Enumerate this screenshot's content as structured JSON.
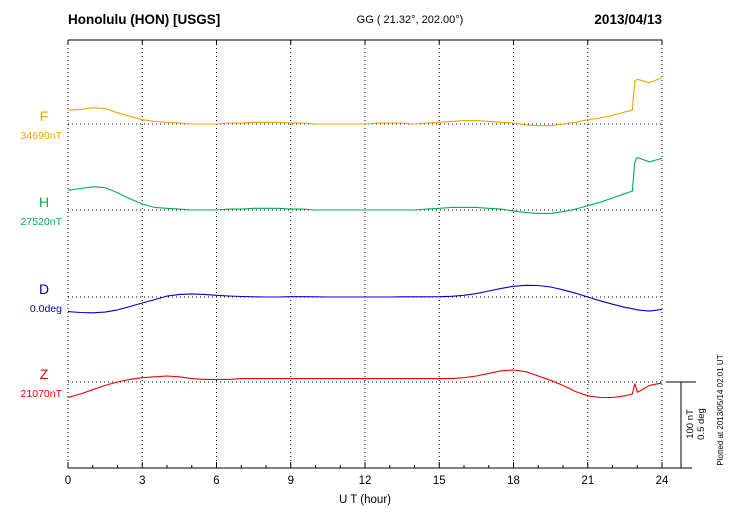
{
  "header": {
    "station_title": "Honolulu (HON)  [USGS]",
    "coordinates": "GG ( 21.32°, 202.00°)",
    "date": "2013/04/13"
  },
  "footer": {
    "plotted_note": "Plotted at 2013/05/14 02:01 UT"
  },
  "chart_data": {
    "type": "line",
    "title": "Honolulu (HON) [USGS] magnetogram 2013/04/13",
    "xlabel": "U T (hour)",
    "x_range": [
      0,
      24
    ],
    "x_ticks": [
      0,
      3,
      6,
      9,
      12,
      15,
      18,
      21,
      24
    ],
    "grid": "dotted vertical lines every 3 hours; dotted horizontal baseline per trace",
    "legend_position": "left baseline labels per trace",
    "scale_bar": {
      "nt": "100 nT",
      "deg": "0.5 deg"
    },
    "x": [
      0,
      0.5,
      1,
      1.5,
      2,
      2.5,
      3,
      3.5,
      4,
      4.5,
      5,
      5.5,
      6,
      6.5,
      7,
      7.5,
      8,
      8.5,
      9,
      9.5,
      10,
      10.5,
      11,
      11.5,
      12,
      12.5,
      13,
      13.5,
      14,
      14.5,
      15,
      15.5,
      16,
      16.5,
      17,
      17.5,
      18,
      18.5,
      19,
      19.5,
      20,
      20.5,
      21,
      21.5,
      22,
      22.5,
      22.8,
      22.9,
      23,
      23.5,
      24
    ],
    "series": [
      {
        "name": "F",
        "unit": "nT",
        "baseline": 34690,
        "baseline_label": "34690nT",
        "color": "#f0a500",
        "values": [
          34706,
          34707,
          34709,
          34708,
          34703,
          34699,
          34695,
          34693,
          34692,
          34691,
          34690,
          34690,
          34690,
          34691,
          34691,
          34692,
          34692,
          34692,
          34691,
          34691,
          34690,
          34690,
          34690,
          34690,
          34690,
          34691,
          34691,
          34691,
          34690,
          34691,
          34692,
          34693,
          34694,
          34694,
          34693,
          34692,
          34691,
          34689,
          34688,
          34688,
          34690,
          34692,
          34695,
          34697,
          34700,
          34704,
          34706,
          34740,
          34742,
          34738,
          34744
        ]
      },
      {
        "name": "H",
        "unit": "nT",
        "baseline": 27520,
        "baseline_label": "27520nT",
        "color": "#00b050",
        "values": [
          27543,
          27545,
          27547,
          27546,
          27540,
          27533,
          27527,
          27523,
          27522,
          27521,
          27520,
          27520,
          27520,
          27521,
          27521,
          27522,
          27522,
          27522,
          27521,
          27521,
          27520,
          27520,
          27520,
          27520,
          27520,
          27520,
          27520,
          27520,
          27520,
          27521,
          27522,
          27523,
          27523,
          27523,
          27522,
          27521,
          27519,
          27517,
          27516,
          27516,
          27518,
          27521,
          27525,
          27529,
          27534,
          27539,
          27542,
          27576,
          27581,
          27576,
          27580
        ]
      },
      {
        "name": "D",
        "unit": "deg",
        "baseline": 0.0,
        "baseline_label": "0.0deg",
        "color": "#0000cc",
        "values": [
          -0.085,
          -0.09,
          -0.092,
          -0.088,
          -0.075,
          -0.055,
          -0.035,
          -0.015,
          0.005,
          0.015,
          0.018,
          0.015,
          0.01,
          0.006,
          0.003,
          0.001,
          0,
          0,
          0.002,
          0.002,
          0.001,
          0,
          0,
          0,
          0,
          0,
          0,
          0.001,
          0.001,
          0.001,
          0.002,
          0.004,
          0.01,
          0.02,
          0.035,
          0.05,
          0.062,
          0.068,
          0.067,
          0.058,
          0.042,
          0.022,
          0,
          -0.022,
          -0.042,
          -0.06,
          -0.068,
          -0.071,
          -0.075,
          -0.082,
          -0.072
        ]
      },
      {
        "name": "Z",
        "unit": "nT",
        "baseline": 21070,
        "baseline_label": "21070nT",
        "color": "#ee0000",
        "values": [
          21052,
          21056,
          21061,
          21066,
          21070,
          21073,
          21075,
          21076,
          21077,
          21076,
          21074,
          21073,
          21073,
          21073,
          21074,
          21074,
          21074,
          21074,
          21074,
          21074,
          21074,
          21074,
          21074,
          21074,
          21074,
          21074,
          21074,
          21074,
          21074,
          21074,
          21074,
          21074,
          21075,
          21077,
          21080,
          21083,
          21084,
          21082,
          21077,
          21072,
          21066,
          21059,
          21054,
          21052,
          21052,
          21054,
          21056,
          21068,
          21058,
          21066,
          21069
        ]
      }
    ]
  }
}
